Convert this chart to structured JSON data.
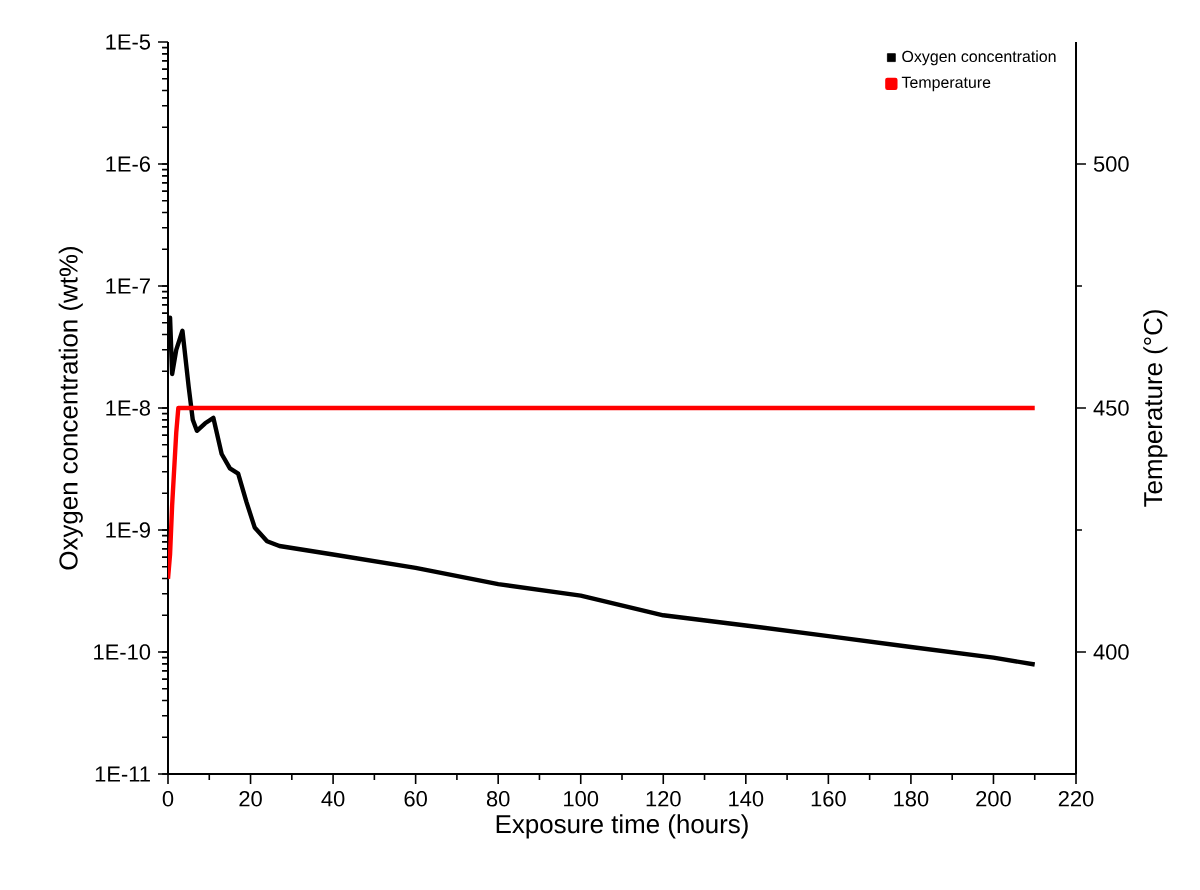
{
  "chart_data": {
    "type": "line",
    "xlabel": "Exposure time (hours)",
    "ylabel": "Oxygen concentration (wt%)",
    "y2label": "Temperature (°C)",
    "xlim": [
      0,
      220
    ],
    "xticks": [
      0,
      20,
      40,
      60,
      80,
      100,
      120,
      140,
      160,
      180,
      200,
      220
    ],
    "ylim": [
      1e-11,
      1e-05
    ],
    "yticks": [
      {
        "value": 1e-11,
        "label": "1E-11"
      },
      {
        "value": 1e-10,
        "label": "1E-10"
      },
      {
        "value": 1e-09,
        "label": "1E-9"
      },
      {
        "value": 1e-08,
        "label": "1E-8"
      },
      {
        "value": 1e-07,
        "label": "1E-7"
      },
      {
        "value": 1e-06,
        "label": "1E-6"
      },
      {
        "value": 1e-05,
        "label": "1E-5"
      }
    ],
    "y2lim": [
      375,
      525
    ],
    "y2ticks": [
      400,
      450,
      500
    ],
    "log": "y",
    "grid": false,
    "legend": "top right",
    "marker": "none",
    "line_style": "solid",
    "series": [
      {
        "name": "Oxygen concentration",
        "color": "#000000",
        "x": [
          0,
          0.5,
          1,
          2,
          3.5,
          5,
          6,
          7,
          9,
          11,
          13,
          15,
          17,
          19,
          21,
          24,
          27,
          40,
          60,
          80,
          100,
          120,
          140,
          160,
          180,
          200,
          210
        ],
        "values": [
          3.2e-08,
          5.5e-08,
          1.9e-08,
          3e-08,
          4.3e-08,
          1.5e-08,
          8e-09,
          6.5e-09,
          7.5e-09,
          8.3e-09,
          4.2e-09,
          3.2e-09,
          2.9e-09,
          1.7e-09,
          1.05e-09,
          8.1e-10,
          7.4e-10,
          6.3e-10,
          4.9e-10,
          3.6e-10,
          2.9e-10,
          2e-10,
          1.65e-10,
          1.35e-10,
          1.1e-10,
          9e-11,
          7.9e-11
        ]
      },
      {
        "name": "Temperature",
        "color": "#ff0000",
        "axis": "y2",
        "x": [
          0,
          0.5,
          1,
          2,
          2.5,
          210
        ],
        "values": [
          415,
          420,
          430,
          445,
          450,
          450
        ]
      }
    ]
  }
}
